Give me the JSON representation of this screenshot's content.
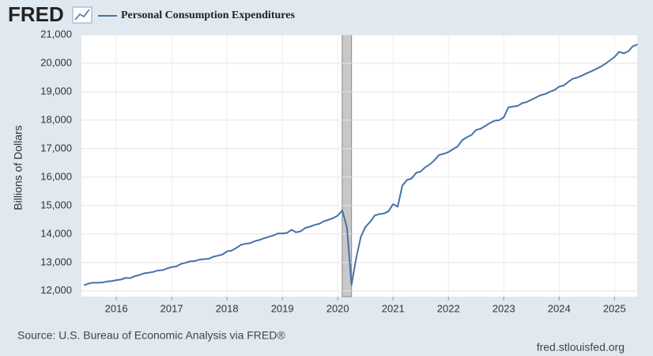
{
  "chart_data": {
    "type": "line",
    "logo": "FRED",
    "title": "Personal Consumption Expenditures",
    "ylabel": "Billions of Dollars",
    "source": "Source: U.S. Bureau of Economic Analysis via FRED®",
    "site": "fred.stlouisfed.org",
    "xlim": [
      2015.37,
      2025.41
    ],
    "xticks": [
      2016,
      2017,
      2018,
      2019,
      2020,
      2021,
      2022,
      2023,
      2024,
      2025
    ],
    "ylim": [
      11800,
      21000
    ],
    "yticks": [
      {
        "value": 12000,
        "label": "12,000"
      },
      {
        "value": 13000,
        "label": "13,000"
      },
      {
        "value": 14000,
        "label": "14,000"
      },
      {
        "value": 15000,
        "label": "15,000"
      },
      {
        "value": 16000,
        "label": "16,000"
      },
      {
        "value": 17000,
        "label": "17,000"
      },
      {
        "value": 18000,
        "label": "18,000"
      },
      {
        "value": 19000,
        "label": "19,000"
      },
      {
        "value": 20000,
        "label": "20,000"
      },
      {
        "value": 21000,
        "label": "21,000"
      }
    ],
    "grid": true,
    "shaded_periods": [
      {
        "start": 2020.08,
        "end": 2020.25
      }
    ],
    "x": [
      2015.417,
      2015.5,
      2015.583,
      2015.667,
      2015.75,
      2015.833,
      2015.917,
      2016,
      2016.083,
      2016.167,
      2016.25,
      2016.333,
      2016.417,
      2016.5,
      2016.583,
      2016.667,
      2016.75,
      2016.833,
      2016.917,
      2017,
      2017.083,
      2017.167,
      2017.25,
      2017.333,
      2017.417,
      2017.5,
      2017.583,
      2017.667,
      2017.75,
      2017.833,
      2017.917,
      2018,
      2018.083,
      2018.167,
      2018.25,
      2018.333,
      2018.417,
      2018.5,
      2018.583,
      2018.667,
      2018.75,
      2018.833,
      2018.917,
      2019,
      2019.083,
      2019.167,
      2019.25,
      2019.333,
      2019.417,
      2019.5,
      2019.583,
      2019.667,
      2019.75,
      2019.833,
      2019.917,
      2020,
      2020.083,
      2020.167,
      2020.25,
      2020.333,
      2020.417,
      2020.5,
      2020.583,
      2020.667,
      2020.75,
      2020.833,
      2020.917,
      2021,
      2021.083,
      2021.167,
      2021.25,
      2021.333,
      2021.417,
      2021.5,
      2021.583,
      2021.667,
      2021.75,
      2021.833,
      2021.917,
      2022,
      2022.083,
      2022.167,
      2022.25,
      2022.333,
      2022.417,
      2022.5,
      2022.583,
      2022.667,
      2022.75,
      2022.833,
      2022.917,
      2023,
      2023.083,
      2023.167,
      2023.25,
      2023.333,
      2023.417,
      2023.5,
      2023.583,
      2023.667,
      2023.75,
      2023.833,
      2023.917,
      2024,
      2024.083,
      2024.167,
      2024.25,
      2024.333,
      2024.417,
      2024.5,
      2024.583,
      2024.667,
      2024.75,
      2024.833,
      2024.917,
      2025,
      2025.083,
      2025.167,
      2025.25,
      2025.333,
      2025.417
    ],
    "series": [
      {
        "name": "Personal Consumption Expenditures",
        "color": "#4572a7",
        "values": [
          12200,
          12260,
          12290,
          12290,
          12300,
          12330,
          12350,
          12380,
          12400,
          12460,
          12450,
          12520,
          12560,
          12620,
          12640,
          12670,
          12720,
          12730,
          12790,
          12840,
          12860,
          12950,
          12990,
          13040,
          13050,
          13100,
          13120,
          13130,
          13200,
          13240,
          13280,
          13390,
          13420,
          13510,
          13620,
          13660,
          13680,
          13750,
          13790,
          13850,
          13900,
          13950,
          14020,
          14020,
          14040,
          14150,
          14060,
          14100,
          14220,
          14260,
          14320,
          14360,
          14450,
          14500,
          14560,
          14650,
          14830,
          14220,
          12220,
          13150,
          13900,
          14250,
          14420,
          14650,
          14700,
          14720,
          14800,
          15050,
          14960,
          15700,
          15900,
          15950,
          16150,
          16200,
          16350,
          16450,
          16600,
          16780,
          16820,
          16880,
          16980,
          17080,
          17300,
          17400,
          17480,
          17660,
          17700,
          17800,
          17900,
          17980,
          18000,
          18100,
          18450,
          18480,
          18500,
          18600,
          18640,
          18720,
          18800,
          18880,
          18920,
          19000,
          19060,
          19180,
          19220,
          19350,
          19460,
          19500,
          19570,
          19650,
          19720,
          19800,
          19880,
          19980,
          20100,
          20220,
          20400,
          20350,
          20420,
          20600,
          20660
        ]
      }
    ]
  }
}
